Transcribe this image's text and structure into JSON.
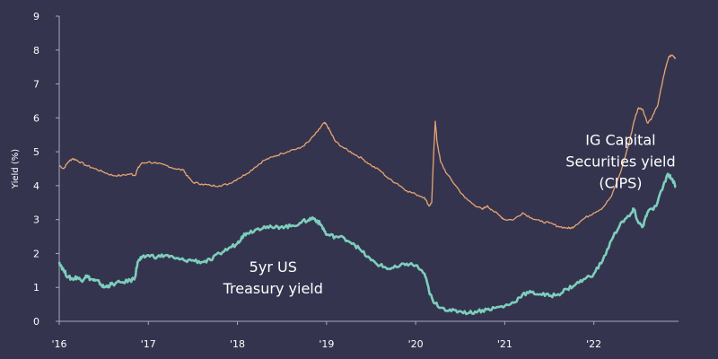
{
  "chart_data": {
    "type": "line",
    "ylabel": "Yield (%)",
    "ylim": [
      0,
      9
    ],
    "yticks": [
      "0",
      "1",
      "2",
      "3",
      "4",
      "5",
      "6",
      "7",
      "8",
      "9"
    ],
    "xlim": [
      2016.0,
      2022.95
    ],
    "xticks": [
      {
        "label": "'16",
        "x": 2016
      },
      {
        "label": "'17",
        "x": 2017
      },
      {
        "label": "'18",
        "x": 2018
      },
      {
        "label": "'19",
        "x": 2019
      },
      {
        "label": "'20",
        "x": 2020
      },
      {
        "label": "'21",
        "x": 2021
      },
      {
        "label": "'22",
        "x": 2022
      }
    ],
    "grid": false,
    "series": [
      {
        "name": "IG Capital Securities yield (CIPS)",
        "color": "#e7a572",
        "points": [
          [
            2016.0,
            4.6
          ],
          [
            2016.05,
            4.5
          ],
          [
            2016.1,
            4.7
          ],
          [
            2016.15,
            4.8
          ],
          [
            2016.2,
            4.75
          ],
          [
            2016.3,
            4.6
          ],
          [
            2016.4,
            4.5
          ],
          [
            2016.5,
            4.4
          ],
          [
            2016.6,
            4.3
          ],
          [
            2016.7,
            4.3
          ],
          [
            2016.8,
            4.35
          ],
          [
            2016.85,
            4.3
          ],
          [
            2016.88,
            4.5
          ],
          [
            2016.92,
            4.65
          ],
          [
            2017.0,
            4.7
          ],
          [
            2017.1,
            4.65
          ],
          [
            2017.2,
            4.6
          ],
          [
            2017.3,
            4.5
          ],
          [
            2017.4,
            4.45
          ],
          [
            2017.43,
            4.3
          ],
          [
            2017.5,
            4.1
          ],
          [
            2017.6,
            4.05
          ],
          [
            2017.7,
            4.0
          ],
          [
            2017.8,
            4.0
          ],
          [
            2017.9,
            4.05
          ],
          [
            2018.0,
            4.2
          ],
          [
            2018.1,
            4.35
          ],
          [
            2018.2,
            4.55
          ],
          [
            2018.3,
            4.75
          ],
          [
            2018.4,
            4.85
          ],
          [
            2018.5,
            4.95
          ],
          [
            2018.6,
            5.05
          ],
          [
            2018.7,
            5.1
          ],
          [
            2018.8,
            5.3
          ],
          [
            2018.9,
            5.6
          ],
          [
            2018.97,
            5.85
          ],
          [
            2019.0,
            5.8
          ],
          [
            2019.05,
            5.55
          ],
          [
            2019.1,
            5.3
          ],
          [
            2019.2,
            5.1
          ],
          [
            2019.3,
            4.95
          ],
          [
            2019.4,
            4.8
          ],
          [
            2019.5,
            4.6
          ],
          [
            2019.6,
            4.45
          ],
          [
            2019.7,
            4.2
          ],
          [
            2019.8,
            4.05
          ],
          [
            2019.9,
            3.85
          ],
          [
            2020.0,
            3.75
          ],
          [
            2020.1,
            3.65
          ],
          [
            2020.15,
            3.4
          ],
          [
            2020.18,
            3.5
          ],
          [
            2020.2,
            4.8
          ],
          [
            2020.22,
            5.9
          ],
          [
            2020.24,
            5.3
          ],
          [
            2020.28,
            4.7
          ],
          [
            2020.35,
            4.35
          ],
          [
            2020.45,
            4.0
          ],
          [
            2020.55,
            3.65
          ],
          [
            2020.65,
            3.45
          ],
          [
            2020.75,
            3.3
          ],
          [
            2020.8,
            3.4
          ],
          [
            2020.85,
            3.3
          ],
          [
            2020.95,
            3.1
          ],
          [
            2021.0,
            3.0
          ],
          [
            2021.1,
            3.0
          ],
          [
            2021.2,
            3.2
          ],
          [
            2021.3,
            3.05
          ],
          [
            2021.4,
            2.95
          ],
          [
            2021.5,
            2.9
          ],
          [
            2021.6,
            2.8
          ],
          [
            2021.7,
            2.75
          ],
          [
            2021.75,
            2.75
          ],
          [
            2021.8,
            2.85
          ],
          [
            2021.9,
            3.05
          ],
          [
            2022.0,
            3.2
          ],
          [
            2022.1,
            3.35
          ],
          [
            2022.2,
            3.7
          ],
          [
            2022.3,
            4.4
          ],
          [
            2022.4,
            5.3
          ],
          [
            2022.45,
            5.9
          ],
          [
            2022.5,
            6.3
          ],
          [
            2022.55,
            6.25
          ],
          [
            2022.6,
            5.85
          ],
          [
            2022.65,
            6.0
          ],
          [
            2022.72,
            6.4
          ],
          [
            2022.78,
            7.2
          ],
          [
            2022.84,
            7.8
          ],
          [
            2022.88,
            7.85
          ],
          [
            2022.92,
            7.75
          ]
        ]
      },
      {
        "name": "5yr US Treasury yield",
        "color": "#7dcfbd",
        "points": [
          [
            2016.0,
            1.75
          ],
          [
            2016.05,
            1.5
          ],
          [
            2016.1,
            1.3
          ],
          [
            2016.15,
            1.25
          ],
          [
            2016.2,
            1.3
          ],
          [
            2016.25,
            1.2
          ],
          [
            2016.3,
            1.35
          ],
          [
            2016.35,
            1.25
          ],
          [
            2016.4,
            1.2
          ],
          [
            2016.45,
            1.15
          ],
          [
            2016.5,
            1.0
          ],
          [
            2016.55,
            1.05
          ],
          [
            2016.6,
            1.1
          ],
          [
            2016.7,
            1.15
          ],
          [
            2016.8,
            1.2
          ],
          [
            2016.85,
            1.3
          ],
          [
            2016.88,
            1.75
          ],
          [
            2016.92,
            1.85
          ],
          [
            2017.0,
            1.95
          ],
          [
            2017.1,
            1.9
          ],
          [
            2017.2,
            1.95
          ],
          [
            2017.3,
            1.85
          ],
          [
            2017.4,
            1.8
          ],
          [
            2017.5,
            1.8
          ],
          [
            2017.6,
            1.75
          ],
          [
            2017.7,
            1.8
          ],
          [
            2017.8,
            2.0
          ],
          [
            2017.9,
            2.15
          ],
          [
            2018.0,
            2.3
          ],
          [
            2018.05,
            2.5
          ],
          [
            2018.1,
            2.6
          ],
          [
            2018.2,
            2.7
          ],
          [
            2018.3,
            2.8
          ],
          [
            2018.4,
            2.75
          ],
          [
            2018.5,
            2.8
          ],
          [
            2018.6,
            2.8
          ],
          [
            2018.7,
            2.9
          ],
          [
            2018.8,
            3.0
          ],
          [
            2018.85,
            3.05
          ],
          [
            2018.9,
            2.95
          ],
          [
            2018.95,
            2.8
          ],
          [
            2019.0,
            2.55
          ],
          [
            2019.1,
            2.5
          ],
          [
            2019.2,
            2.45
          ],
          [
            2019.3,
            2.3
          ],
          [
            2019.4,
            2.05
          ],
          [
            2019.5,
            1.8
          ],
          [
            2019.6,
            1.65
          ],
          [
            2019.7,
            1.55
          ],
          [
            2019.8,
            1.6
          ],
          [
            2019.9,
            1.7
          ],
          [
            2020.0,
            1.65
          ],
          [
            2020.1,
            1.4
          ],
          [
            2020.15,
            0.9
          ],
          [
            2020.2,
            0.55
          ],
          [
            2020.3,
            0.4
          ],
          [
            2020.4,
            0.3
          ],
          [
            2020.5,
            0.3
          ],
          [
            2020.6,
            0.25
          ],
          [
            2020.7,
            0.3
          ],
          [
            2020.8,
            0.35
          ],
          [
            2020.9,
            0.4
          ],
          [
            2021.0,
            0.45
          ],
          [
            2021.1,
            0.55
          ],
          [
            2021.2,
            0.8
          ],
          [
            2021.3,
            0.85
          ],
          [
            2021.4,
            0.8
          ],
          [
            2021.5,
            0.75
          ],
          [
            2021.6,
            0.8
          ],
          [
            2021.7,
            0.95
          ],
          [
            2021.8,
            1.1
          ],
          [
            2021.9,
            1.25
          ],
          [
            2022.0,
            1.4
          ],
          [
            2022.1,
            1.8
          ],
          [
            2022.2,
            2.4
          ],
          [
            2022.3,
            2.9
          ],
          [
            2022.4,
            3.1
          ],
          [
            2022.45,
            3.3
          ],
          [
            2022.5,
            2.9
          ],
          [
            2022.55,
            2.8
          ],
          [
            2022.6,
            3.2
          ],
          [
            2022.7,
            3.4
          ],
          [
            2022.78,
            4.0
          ],
          [
            2022.83,
            4.35
          ],
          [
            2022.88,
            4.2
          ],
          [
            2022.92,
            3.95
          ]
        ]
      }
    ],
    "annotations": [
      {
        "series": 0,
        "lines": [
          "IG Capital",
          "Securities yield",
          "(CIPS)"
        ],
        "x": 2022.3,
        "y": 5.2
      },
      {
        "series": 1,
        "lines": [
          "5yr US",
          "Treasury yield"
        ],
        "x": 2018.4,
        "y": 1.45
      }
    ]
  }
}
